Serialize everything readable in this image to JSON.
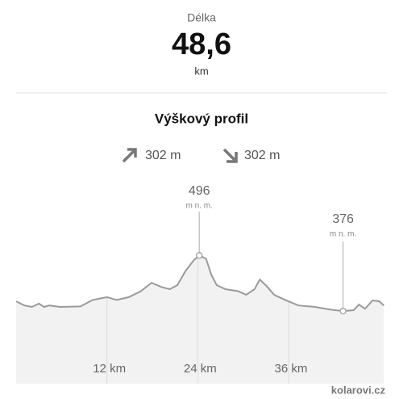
{
  "header": {
    "label": "Délka",
    "value": "48,6",
    "unit": "km"
  },
  "section_title": "Výškový profil",
  "ascent": "302 m",
  "descent": "302 m",
  "chart_data": {
    "type": "area",
    "x": [
      0,
      1.1,
      2.1,
      3.0,
      3.7,
      4.4,
      5.8,
      8.5,
      10.1,
      12.0,
      13.3,
      14.9,
      16.5,
      17.9,
      19.2,
      20.3,
      21.3,
      22.4,
      23.5,
      24.2,
      25.1,
      25.8,
      26.5,
      27.7,
      29.3,
      30.4,
      31.5,
      32.2,
      33.1,
      34.1,
      35.7,
      37.3,
      39.5,
      41.6,
      43.2,
      44.6,
      45.3,
      46.1,
      47.1,
      48.0,
      48.6
    ],
    "values": [
      397,
      388,
      385,
      392,
      385,
      388,
      385,
      386,
      400,
      406,
      400,
      406,
      419,
      437,
      428,
      423,
      432,
      463,
      486,
      496,
      489,
      454,
      432,
      423,
      419,
      411,
      423,
      444,
      430,
      411,
      399,
      388,
      385,
      379,
      376,
      378,
      390,
      381,
      399,
      397,
      388
    ],
    "color": "#9a9a9a",
    "xlim": [
      0,
      49
    ],
    "ylim": [
      270,
      580
    ],
    "xticks": [
      {
        "value": 12,
        "label": "12 km"
      },
      {
        "value": 24,
        "label": "24 km"
      },
      {
        "value": 36,
        "label": "36 km"
      }
    ],
    "annotations": [
      {
        "x": 24.2,
        "value": 496,
        "unit": "m n. m."
      },
      {
        "x": 43.2,
        "value": 376,
        "unit": "m n. m."
      }
    ]
  },
  "watermark": "kolarovi.cz"
}
